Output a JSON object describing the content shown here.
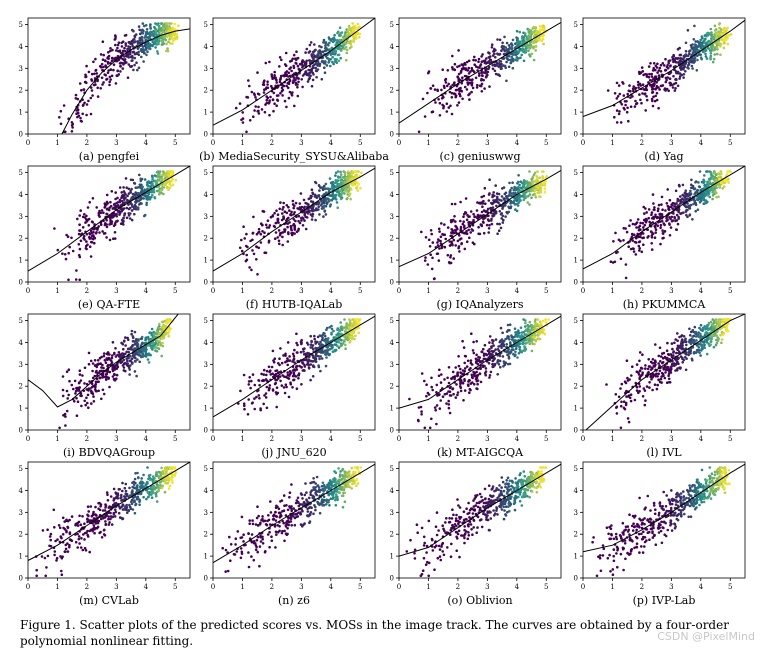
{
  "caption": "Figure 1. Scatter plots of the predicted scores vs. MOSs in the image track. The curves are obtained by a four-order polynomial nonlinear fitting.",
  "watermark": "CSDN @PixelMind",
  "colors": {
    "curve": "#000000",
    "low": "#440154",
    "mid": "#21918c",
    "high": "#fde725"
  },
  "chart_data": [
    {
      "type": "scatter",
      "title": "(a) pengfei",
      "xlim": [
        0,
        5.5
      ],
      "ylim": [
        0,
        5.3
      ],
      "xticks": [
        0,
        1,
        2,
        3,
        4,
        5
      ],
      "yticks": [
        0,
        1,
        2,
        3,
        4,
        5
      ],
      "curve": {
        "x": [
          1.15,
          1.5,
          2,
          2.5,
          3,
          3.5,
          4,
          4.5,
          5,
          5.5
        ],
        "y": [
          0,
          0.9,
          2.0,
          2.8,
          3.4,
          3.85,
          4.2,
          4.5,
          4.7,
          4.8
        ]
      },
      "points": {
        "x_range": [
          1.0,
          5.0
        ],
        "seed": 1
      }
    },
    {
      "type": "scatter",
      "title": "(b) MediaSecurity_SYSU&Alibaba",
      "xlim": [
        0,
        5.5
      ],
      "ylim": [
        0,
        5.3
      ],
      "xticks": [
        0,
        1,
        2,
        3,
        4,
        5
      ],
      "yticks": [
        0,
        1,
        2,
        3,
        4,
        5
      ],
      "curve": {
        "x": [
          0,
          1,
          2,
          3,
          4,
          4.5,
          5,
          5.5
        ],
        "y": [
          0.4,
          1.1,
          2.0,
          2.9,
          3.8,
          4.3,
          4.8,
          5.3
        ]
      },
      "points": {
        "x_range": [
          0.7,
          4.9
        ],
        "seed": 2
      }
    },
    {
      "type": "scatter",
      "title": "(c) geniuswwg",
      "xlim": [
        0,
        5.5
      ],
      "ylim": [
        0,
        5.3
      ],
      "xticks": [
        0,
        1,
        2,
        3,
        4,
        5
      ],
      "yticks": [
        0,
        1,
        2,
        3,
        4,
        5
      ],
      "curve": {
        "x": [
          0,
          1,
          2,
          3,
          4,
          5,
          5.5
        ],
        "y": [
          0.5,
          1.4,
          2.3,
          3.1,
          3.9,
          4.7,
          5.1
        ]
      },
      "points": {
        "x_range": [
          0.6,
          4.9
        ],
        "seed": 3
      }
    },
    {
      "type": "scatter",
      "title": "(d) Yag",
      "xlim": [
        0,
        5.5
      ],
      "ylim": [
        0,
        5.3
      ],
      "xticks": [
        0,
        1,
        2,
        3,
        4,
        5
      ],
      "yticks": [
        0,
        1,
        2,
        3,
        4,
        5
      ],
      "curve": {
        "x": [
          0,
          1,
          2,
          3,
          4,
          5,
          5.5
        ],
        "y": [
          0.8,
          1.3,
          2.1,
          2.9,
          3.8,
          4.7,
          5.2
        ]
      },
      "points": {
        "x_range": [
          0.7,
          4.9
        ],
        "seed": 4
      }
    },
    {
      "type": "scatter",
      "title": "(e) QA-FTE",
      "xlim": [
        0,
        5.5
      ],
      "ylim": [
        0,
        5.3
      ],
      "xticks": [
        0,
        1,
        2,
        3,
        4,
        5
      ],
      "yticks": [
        0,
        1,
        2,
        3,
        4,
        5
      ],
      "curve": {
        "x": [
          0,
          1,
          2,
          3,
          4,
          4.5,
          5,
          5.5
        ],
        "y": [
          0.5,
          1.3,
          2.3,
          3.3,
          4.1,
          4.5,
          4.9,
          5.3
        ]
      },
      "points": {
        "x_range": [
          0.9,
          4.9
        ],
        "seed": 5
      }
    },
    {
      "type": "scatter",
      "title": "(f) HUTB-IQALab",
      "xlim": [
        0,
        5.5
      ],
      "ylim": [
        0,
        5.3
      ],
      "xticks": [
        0,
        1,
        2,
        3,
        4,
        5
      ],
      "yticks": [
        0,
        1,
        2,
        3,
        4,
        5
      ],
      "curve": {
        "x": [
          0,
          1,
          2,
          3,
          4,
          5,
          5.5
        ],
        "y": [
          0.5,
          1.3,
          2.3,
          3.2,
          4.1,
          4.8,
          5.2
        ]
      },
      "points": {
        "x_range": [
          0.8,
          4.9
        ],
        "seed": 6
      }
    },
    {
      "type": "scatter",
      "title": "(g) IQAnalyzers",
      "xlim": [
        0,
        5.5
      ],
      "ylim": [
        0,
        5.3
      ],
      "xticks": [
        0,
        1,
        2,
        3,
        4,
        5
      ],
      "yticks": [
        0,
        1,
        2,
        3,
        4,
        5
      ],
      "curve": {
        "x": [
          0,
          1,
          2,
          3,
          4,
          5,
          5.5
        ],
        "y": [
          0.7,
          1.3,
          2.2,
          3.1,
          4.0,
          4.7,
          5.1
        ]
      },
      "points": {
        "x_range": [
          0.7,
          4.9
        ],
        "seed": 7
      }
    },
    {
      "type": "scatter",
      "title": "(h) PKUMMCA",
      "xlim": [
        0,
        5.5
      ],
      "ylim": [
        0,
        5.3
      ],
      "xticks": [
        0,
        1,
        2,
        3,
        4,
        5
      ],
      "yticks": [
        0,
        1,
        2,
        3,
        4,
        5
      ],
      "curve": {
        "x": [
          0,
          1,
          2,
          3,
          4,
          5,
          5.5
        ],
        "y": [
          0.6,
          1.3,
          2.3,
          3.2,
          4.1,
          4.9,
          5.3
        ]
      },
      "points": {
        "x_range": [
          0.8,
          4.9
        ],
        "seed": 8
      }
    },
    {
      "type": "scatter",
      "title": "(i) BDVQAGroup",
      "xlim": [
        0,
        5.5
      ],
      "ylim": [
        0,
        5.3
      ],
      "xticks": [
        0,
        1,
        2,
        3,
        4,
        5
      ],
      "yticks": [
        0,
        1,
        2,
        3,
        4,
        5
      ],
      "curve": {
        "x": [
          0,
          0.5,
          1,
          1.5,
          2,
          2.5,
          3,
          3.5,
          4,
          4.5,
          4.8,
          5.1
        ],
        "y": [
          2.3,
          1.8,
          1.05,
          1.4,
          2.0,
          2.6,
          3.1,
          3.5,
          3.9,
          4.3,
          4.8,
          5.3
        ]
      },
      "points": {
        "x_range": [
          1.0,
          4.8
        ],
        "seed": 9
      }
    },
    {
      "type": "scatter",
      "title": "(j) JNU_620",
      "xlim": [
        0,
        5.5
      ],
      "ylim": [
        0,
        5.3
      ],
      "xticks": [
        0,
        1,
        2,
        3,
        4,
        5
      ],
      "yticks": [
        0,
        1,
        2,
        3,
        4,
        5
      ],
      "curve": {
        "x": [
          0,
          1,
          2,
          3,
          4,
          5,
          5.5
        ],
        "y": [
          0.6,
          1.4,
          2.3,
          3.2,
          4.0,
          4.8,
          5.2
        ]
      },
      "points": {
        "x_range": [
          0.7,
          4.9
        ],
        "seed": 10
      }
    },
    {
      "type": "scatter",
      "title": "(k) MT-AIGCQA",
      "xlim": [
        0,
        5.5
      ],
      "ylim": [
        0,
        5.3
      ],
      "xticks": [
        0,
        1,
        2,
        3,
        4,
        5
      ],
      "yticks": [
        0,
        1,
        2,
        3,
        4,
        5
      ],
      "curve": {
        "x": [
          0,
          1,
          2,
          3,
          4,
          5,
          5.5
        ],
        "y": [
          1.0,
          1.4,
          2.3,
          3.2,
          4.0,
          4.8,
          5.2
        ]
      },
      "points": {
        "x_range": [
          0.5,
          4.9
        ],
        "seed": 11
      }
    },
    {
      "type": "scatter",
      "title": "(l) IVL",
      "xlim": [
        0,
        5.5
      ],
      "ylim": [
        0,
        5.3
      ],
      "xticks": [
        0,
        1,
        2,
        3,
        4,
        5
      ],
      "yticks": [
        0,
        1,
        2,
        3,
        4,
        5
      ],
      "curve": {
        "x": [
          0.1,
          1,
          2,
          3,
          4,
          5,
          5.5
        ],
        "y": [
          0,
          1.1,
          2.3,
          3.2,
          4.1,
          5.0,
          5.3
        ]
      },
      "points": {
        "x_range": [
          0.8,
          4.9
        ],
        "seed": 12
      }
    },
    {
      "type": "scatter",
      "title": "(m) CVLab",
      "xlim": [
        0,
        5.5
      ],
      "ylim": [
        0,
        5.3
      ],
      "xticks": [
        0,
        1,
        2,
        3,
        4,
        5
      ],
      "yticks": [
        0,
        1,
        2,
        3,
        4,
        5
      ],
      "curve": {
        "x": [
          0,
          1,
          2,
          3,
          4,
          5,
          5.5
        ],
        "y": [
          0.8,
          1.5,
          2.4,
          3.3,
          4.1,
          4.9,
          5.3
        ]
      },
      "points": {
        "x_range": [
          0.2,
          4.9
        ],
        "seed": 13
      }
    },
    {
      "type": "scatter",
      "title": "(n) z6",
      "xlim": [
        0,
        5.5
      ],
      "ylim": [
        0,
        5.3
      ],
      "xticks": [
        0,
        1,
        2,
        3,
        4,
        5
      ],
      "yticks": [
        0,
        1,
        2,
        3,
        4,
        5
      ],
      "curve": {
        "x": [
          0,
          1,
          2,
          3,
          4,
          5,
          5.5
        ],
        "y": [
          0.7,
          1.5,
          2.4,
          3.2,
          4.0,
          4.8,
          5.2
        ]
      },
      "points": {
        "x_range": [
          0.2,
          4.9
        ],
        "seed": 14
      }
    },
    {
      "type": "scatter",
      "title": "(o) Oblivion",
      "xlim": [
        0,
        5.5
      ],
      "ylim": [
        0,
        5.3
      ],
      "xticks": [
        0,
        1,
        2,
        3,
        4,
        5
      ],
      "yticks": [
        0,
        1,
        2,
        3,
        4,
        5
      ],
      "curve": {
        "x": [
          0,
          1,
          2,
          3,
          4,
          5,
          5.5
        ],
        "y": [
          1.0,
          1.4,
          2.3,
          3.2,
          4.0,
          4.8,
          5.2
        ]
      },
      "points": {
        "x_range": [
          0.3,
          4.9
        ],
        "seed": 15
      }
    },
    {
      "type": "scatter",
      "title": "(p) IVP-Lab",
      "xlim": [
        0,
        5.5
      ],
      "ylim": [
        0,
        5.3
      ],
      "xticks": [
        0,
        1,
        2,
        3,
        4,
        5
      ],
      "yticks": [
        0,
        1,
        2,
        3,
        4,
        5
      ],
      "curve": {
        "x": [
          0,
          1,
          2,
          3,
          4,
          5,
          5.5
        ],
        "y": [
          1.2,
          1.5,
          2.2,
          3.0,
          3.9,
          4.8,
          5.2
        ]
      },
      "points": {
        "x_range": [
          0.1,
          4.9
        ],
        "seed": 16
      }
    }
  ]
}
